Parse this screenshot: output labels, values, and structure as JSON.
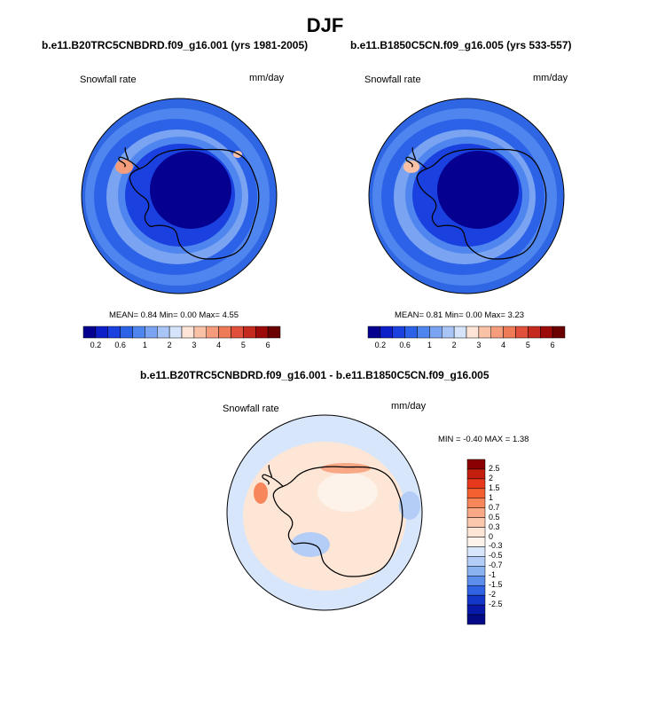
{
  "figure": {
    "title": "DJF"
  },
  "chart_data": [
    {
      "type": "heatmap",
      "projection": "south-polar-stereographic",
      "title": "b.e11.B20TRC5CNBDRD.f09_g16.001 (yrs 1981-2005)",
      "variable": "Snowfall rate",
      "units": "mm/day",
      "stats": {
        "mean_label": "MEAN=",
        "mean": "0.84",
        "min_label": "Min=",
        "min": "0.00",
        "max_label": "Max=",
        "max": "4.55"
      },
      "colorbar": {
        "orientation": "horizontal",
        "levels": [
          0.2,
          0.4,
          0.6,
          0.8,
          1,
          1.5,
          2,
          2.5,
          3,
          3.5,
          4,
          4.5,
          5,
          5.5,
          6
        ],
        "tick_labels": [
          "0.2",
          "0.6",
          "1",
          "2",
          "3",
          "4",
          "5",
          "6"
        ],
        "colors": [
          "#05008f",
          "#0d1fc9",
          "#1a40e0",
          "#2b62e8",
          "#4f85ee",
          "#7aa4f2",
          "#a9c4f6",
          "#d6e4fb",
          "#fde4d6",
          "#f9c1a6",
          "#f49c7c",
          "#ee7a57",
          "#e0503a",
          "#c52a1f",
          "#9c0a0a",
          "#6b0000"
        ]
      }
    },
    {
      "type": "heatmap",
      "projection": "south-polar-stereographic",
      "title": "b.e11.B1850C5CN.f09_g16.005 (yrs 533-557)",
      "variable": "Snowfall rate",
      "units": "mm/day",
      "stats": {
        "mean_label": "MEAN=",
        "mean": "0.81",
        "min_label": "Min=",
        "min": "0.00",
        "max_label": "Max=",
        "max": "3.23"
      },
      "colorbar": {
        "orientation": "horizontal",
        "levels": [
          0.2,
          0.4,
          0.6,
          0.8,
          1,
          1.5,
          2,
          2.5,
          3,
          3.5,
          4,
          4.5,
          5,
          5.5,
          6
        ],
        "tick_labels": [
          "0.2",
          "0.6",
          "1",
          "2",
          "3",
          "4",
          "5",
          "6"
        ],
        "colors": [
          "#05008f",
          "#0d1fc9",
          "#1a40e0",
          "#2b62e8",
          "#4f85ee",
          "#7aa4f2",
          "#a9c4f6",
          "#d6e4fb",
          "#fde4d6",
          "#f9c1a6",
          "#f49c7c",
          "#ee7a57",
          "#e0503a",
          "#c52a1f",
          "#9c0a0a",
          "#6b0000"
        ]
      }
    },
    {
      "type": "heatmap",
      "projection": "south-polar-stereographic",
      "title": "b.e11.B20TRC5CNBDRD.f09_g16.001 - b.e11.B1850C5CN.f09_g16.005",
      "variable": "Snowfall rate",
      "units": "mm/day",
      "stats": {
        "min_label": "MIN =",
        "min": "-0.40",
        "max_label": "MAX =",
        "max": "1.38"
      },
      "colorbar": {
        "orientation": "vertical",
        "tick_labels": [
          "2.5",
          "2",
          "1.5",
          "1",
          "0.7",
          "0.5",
          "0.3",
          "0",
          "-0.3",
          "-0.5",
          "-0.7",
          "-1",
          "-1.5",
          "-2",
          "-2.5"
        ],
        "colors": [
          "#8b0000",
          "#c41e0f",
          "#e8391d",
          "#f5602f",
          "#f7875a",
          "#f9a886",
          "#fbc8ae",
          "#fde6d6",
          "#fdf3ea",
          "#d8e6fb",
          "#b3cdf6",
          "#8ab1f0",
          "#5e8eeb",
          "#2f63e3",
          "#1337c8",
          "#0818a8",
          "#020a88"
        ]
      }
    }
  ]
}
